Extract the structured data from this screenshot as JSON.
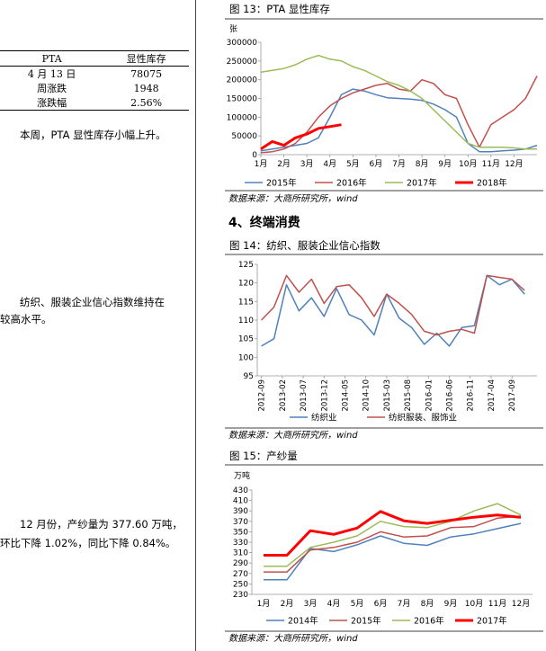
{
  "left": {
    "table": {
      "header": [
        "PTA",
        "显性库存"
      ],
      "rows": [
        [
          "4 月 13 日",
          "78075"
        ],
        [
          "周涨跌",
          "1948"
        ],
        [
          "涨跌幅",
          "2.56%"
        ]
      ]
    },
    "note1": "本周，PTA 显性库存小幅上升。",
    "note2": [
      "纺织、服装企业信心指数维持在",
      "较高水平。"
    ],
    "note3": [
      "12 月份，产纱量为 377.60 万吨，",
      "环比下降 1.02%，同比下降 0.84%。"
    ]
  },
  "section_heading": "4、终端消费",
  "chart_data": [
    {
      "type": "line",
      "title": "图 13：PTA 显性库存",
      "y_unit": "张",
      "source": "数据来源：大商所研究所，wind",
      "x": [
        1,
        1.5,
        2,
        2.5,
        3,
        3.5,
        4,
        4.5,
        5,
        5.5,
        6,
        6.5,
        7,
        7.5,
        8,
        8.5,
        9,
        9.5,
        10,
        10.5,
        11,
        11.5,
        12,
        12.5,
        13
      ],
      "xlim": [
        1,
        13
      ],
      "xticks": [
        {
          "value": 1,
          "label": "1月"
        },
        {
          "value": 2,
          "label": "2月"
        },
        {
          "value": 3,
          "label": "3月"
        },
        {
          "value": 4,
          "label": "4月"
        },
        {
          "value": 5,
          "label": "5月"
        },
        {
          "value": 6,
          "label": "6月"
        },
        {
          "value": 7,
          "label": "7月"
        },
        {
          "value": 8,
          "label": "8月"
        },
        {
          "value": 9,
          "label": "9月"
        },
        {
          "value": 10,
          "label": "10月"
        },
        {
          "value": 11,
          "label": "11月"
        },
        {
          "value": 12,
          "label": "12月"
        }
      ],
      "ylim": [
        0,
        300000
      ],
      "yticks": [
        0,
        50000,
        100000,
        150000,
        200000,
        250000,
        300000
      ],
      "series": [
        {
          "name": "2015年",
          "color": "#4f81bd",
          "linewidth": 1.5,
          "values": [
            10000,
            15000,
            20000,
            25000,
            30000,
            45000,
            100000,
            160000,
            175000,
            170000,
            160000,
            152000,
            150000,
            148000,
            145000,
            135000,
            120000,
            100000,
            30000,
            8000,
            8000,
            10000,
            12000,
            15000,
            25000
          ]
        },
        {
          "name": "2016年",
          "color": "#c0504d",
          "linewidth": 1.5,
          "values": [
            5000,
            8000,
            15000,
            30000,
            60000,
            100000,
            130000,
            150000,
            165000,
            175000,
            185000,
            190000,
            175000,
            170000,
            200000,
            190000,
            160000,
            150000,
            80000,
            20000,
            80000,
            100000,
            120000,
            150000,
            210000
          ]
        },
        {
          "name": "2017年",
          "color": "#9bbb59",
          "linewidth": 1.5,
          "values": [
            220000,
            225000,
            230000,
            240000,
            255000,
            265000,
            255000,
            250000,
            235000,
            225000,
            210000,
            195000,
            185000,
            170000,
            150000,
            120000,
            90000,
            60000,
            30000,
            20000,
            20000,
            20000,
            18000,
            15000,
            15000
          ]
        },
        {
          "name": "2018年",
          "color": "#ff0000",
          "linewidth": 3,
          "values": [
            15000,
            35000,
            25000,
            45000,
            55000,
            70000,
            75000,
            80000,
            null,
            null,
            null,
            null,
            null,
            null,
            null,
            null,
            null,
            null,
            null,
            null,
            null,
            null,
            null,
            null,
            null
          ]
        }
      ]
    },
    {
      "type": "line",
      "title": "图 14：纺织、服装企业信心指数",
      "source": "数据来源：大商所研究所，wind",
      "x": [
        0,
        3,
        6,
        9,
        12,
        15,
        18,
        21,
        24,
        27,
        30,
        33,
        36,
        39,
        42,
        45,
        48,
        51,
        54,
        57,
        60,
        63
      ],
      "xlim": [
        -1,
        66
      ],
      "xticks": [
        {
          "value": 0,
          "label": "2012-09"
        },
        {
          "value": 5,
          "label": "2013-02"
        },
        {
          "value": 10,
          "label": "2013-07"
        },
        {
          "value": 15,
          "label": "2013-12"
        },
        {
          "value": 20,
          "label": "2014-05"
        },
        {
          "value": 25,
          "label": "2014-10"
        },
        {
          "value": 30,
          "label": "2015-03"
        },
        {
          "value": 35,
          "label": "2015-08"
        },
        {
          "value": 40,
          "label": "2016-01"
        },
        {
          "value": 45,
          "label": "2016-06"
        },
        {
          "value": 50,
          "label": "2016-11"
        },
        {
          "value": 55,
          "label": "2017-04"
        },
        {
          "value": 60,
          "label": "2017-09"
        }
      ],
      "ylim": [
        95,
        125
      ],
      "yticks": [
        95,
        100,
        105,
        110,
        115,
        120,
        125
      ],
      "series": [
        {
          "name": "纺织业",
          "color": "#4f81bd",
          "linewidth": 1.5,
          "values": [
            103,
            105,
            119.5,
            112.5,
            116,
            111,
            118.5,
            111.5,
            110,
            106,
            117,
            110.5,
            108,
            103.5,
            106.5,
            103,
            108,
            108.5,
            122,
            119.5,
            121,
            117
          ]
        },
        {
          "name": "纺织服装、服饰业",
          "color": "#c0504d",
          "linewidth": 1.5,
          "values": [
            110,
            113.5,
            122,
            117.5,
            121,
            114.5,
            119,
            119.5,
            116,
            111,
            117,
            114.5,
            111.5,
            107,
            106,
            107,
            107.5,
            106.5,
            122,
            121.5,
            121,
            118
          ]
        }
      ]
    },
    {
      "type": "line",
      "title": "图 15：产纱量",
      "y_unit": "万吨",
      "source": "数据来源：大商所研究所，wind",
      "categories": [
        "1月",
        "2月",
        "3月",
        "4月",
        "5月",
        "6月",
        "7月",
        "8月",
        "9月",
        "10月",
        "11月",
        "12月"
      ],
      "ylim": [
        230,
        430
      ],
      "yticks": [
        230,
        250,
        270,
        290,
        310,
        330,
        350,
        370,
        390,
        410,
        430
      ],
      "series": [
        {
          "name": "2014年",
          "color": "#4f81bd",
          "linewidth": 1.5,
          "values": [
            258,
            258,
            318,
            312,
            325,
            342,
            328,
            324,
            340,
            346,
            356,
            366
          ]
        },
        {
          "name": "2015年",
          "color": "#c0504d",
          "linewidth": 1.5,
          "values": [
            273,
            273,
            315,
            320,
            330,
            350,
            340,
            342,
            358,
            360,
            376,
            380
          ]
        },
        {
          "name": "2016年",
          "color": "#9bbb59",
          "linewidth": 1.5,
          "values": [
            284,
            284,
            320,
            330,
            342,
            370,
            360,
            358,
            370,
            390,
            404,
            382
          ]
        },
        {
          "name": "2017年",
          "color": "#ff0000",
          "linewidth": 3,
          "values": [
            305,
            305,
            352,
            345,
            357,
            389,
            371,
            366,
            372,
            378,
            382,
            377.6
          ]
        }
      ]
    }
  ]
}
